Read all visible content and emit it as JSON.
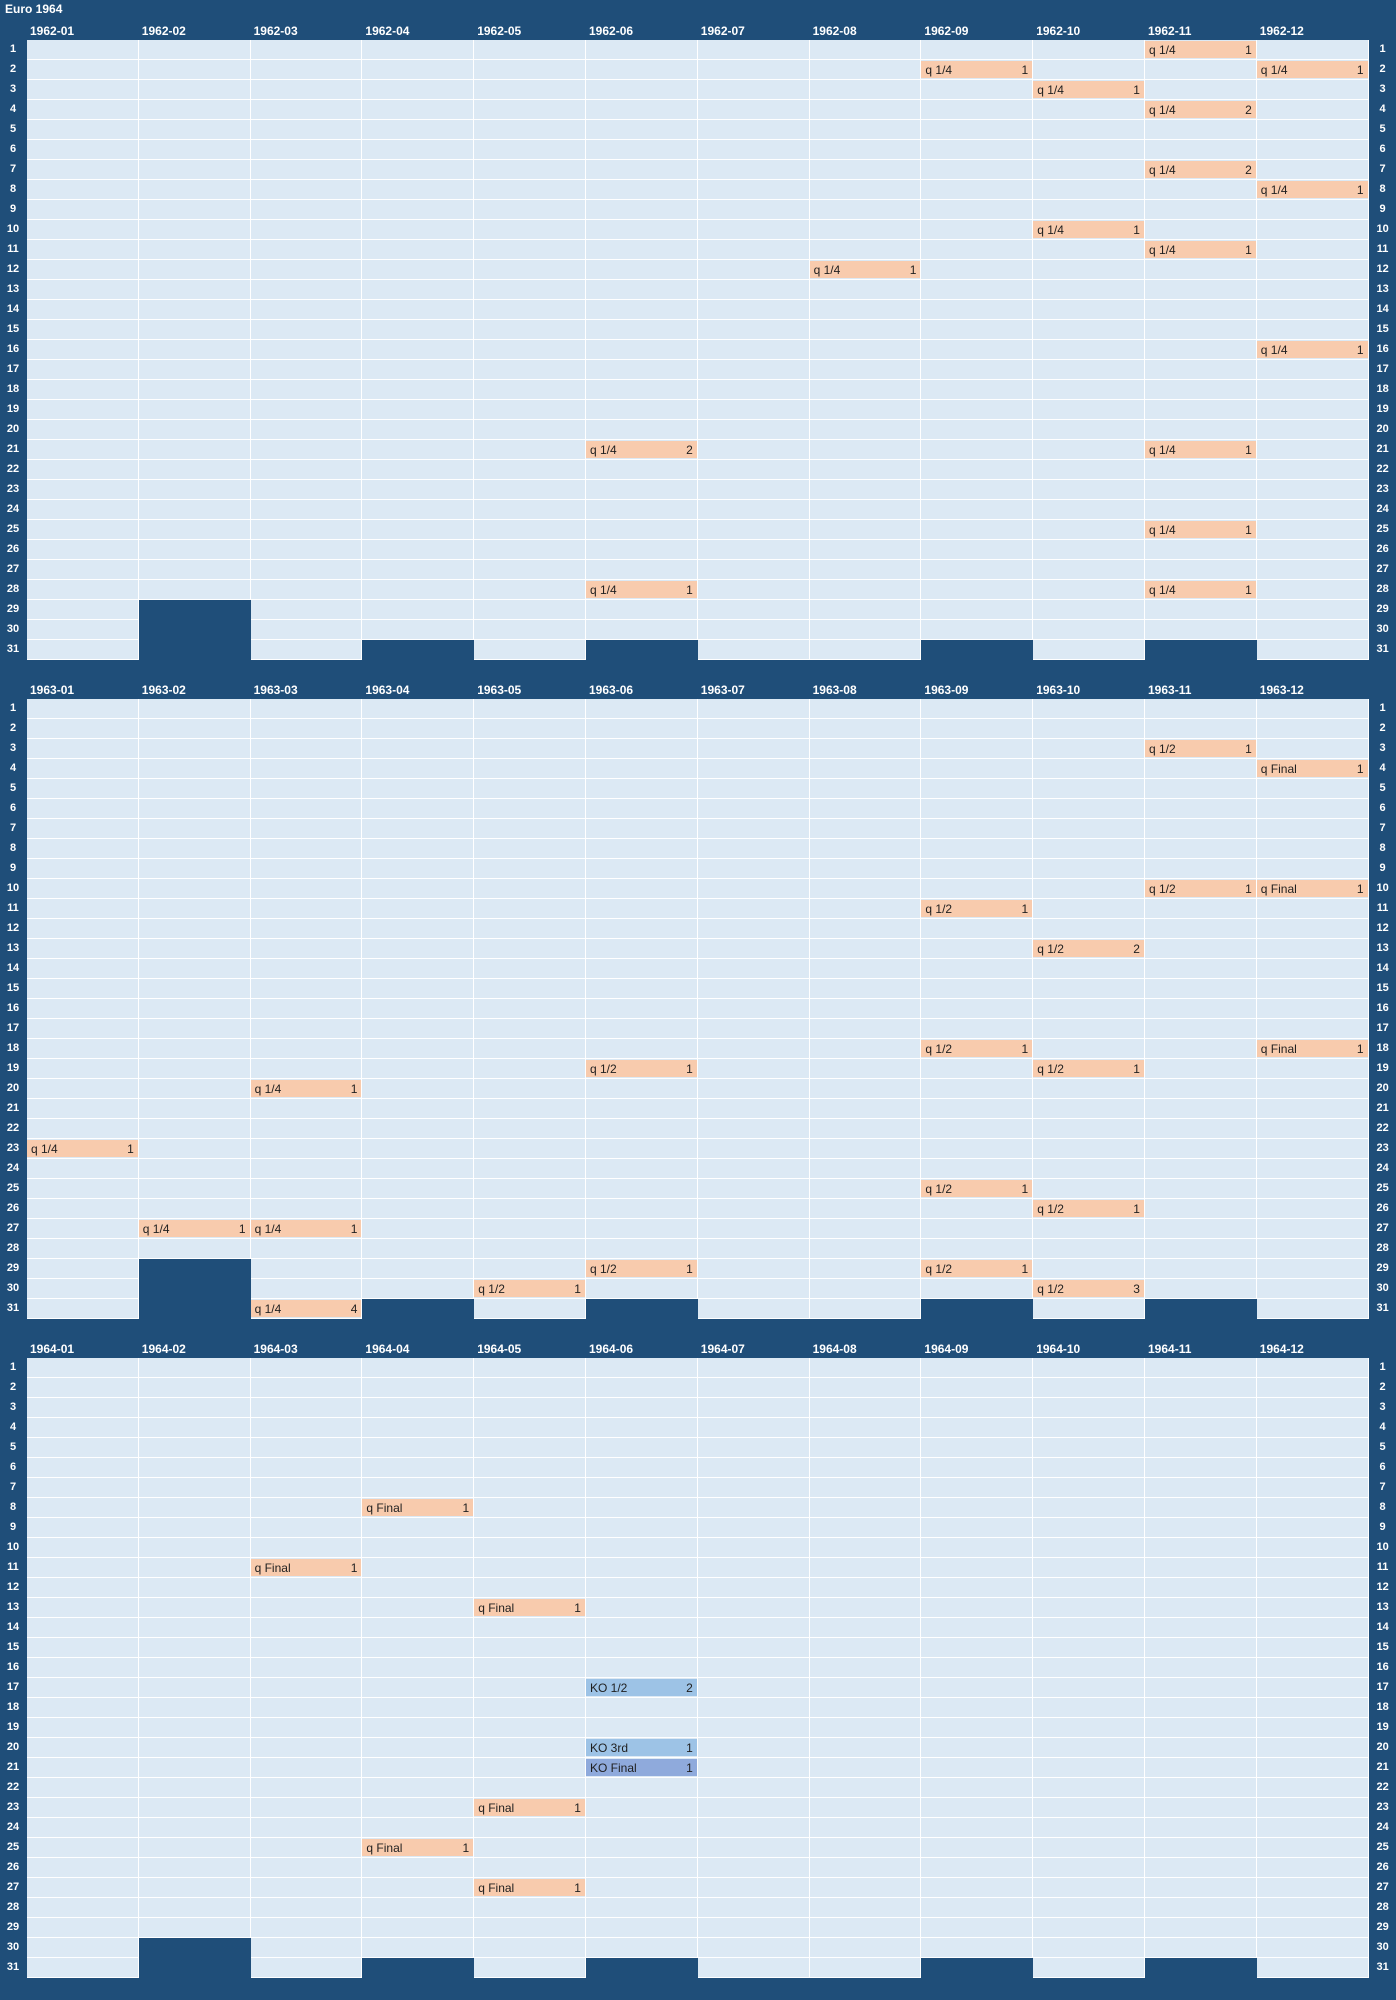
{
  "title": "Euro 1964",
  "colors": {
    "background": "#1f4e79",
    "cell": "#dce9f4",
    "gridline": "#ffffff",
    "qualifier": "#f8cbad",
    "knockout_semi_3rd": "#9dc3e6",
    "knockout_final": "#8faadc"
  },
  "chart_data": {
    "type": "heatmap",
    "title": "Euro 1964",
    "days": [
      "1",
      "2",
      "3",
      "4",
      "5",
      "6",
      "7",
      "8",
      "9",
      "10",
      "11",
      "12",
      "13",
      "14",
      "15",
      "16",
      "17",
      "18",
      "19",
      "20",
      "21",
      "22",
      "23",
      "24",
      "25",
      "26",
      "27",
      "28",
      "29",
      "30",
      "31"
    ],
    "years": [
      {
        "months": [
          "1962-01",
          "1962-02",
          "1962-03",
          "1962-04",
          "1962-05",
          "1962-06",
          "1962-07",
          "1962-08",
          "1962-09",
          "1962-10",
          "1962-11",
          "1962-12"
        ],
        "events": [
          {
            "month": 11,
            "day": 1,
            "label": "q 1/4",
            "count": 1,
            "kind": "q"
          },
          {
            "month": 9,
            "day": 2,
            "label": "q 1/4",
            "count": 1,
            "kind": "q"
          },
          {
            "month": 12,
            "day": 2,
            "label": "q 1/4",
            "count": 1,
            "kind": "q"
          },
          {
            "month": 10,
            "day": 3,
            "label": "q 1/4",
            "count": 1,
            "kind": "q"
          },
          {
            "month": 11,
            "day": 4,
            "label": "q 1/4",
            "count": 2,
            "kind": "q"
          },
          {
            "month": 11,
            "day": 7,
            "label": "q 1/4",
            "count": 2,
            "kind": "q"
          },
          {
            "month": 12,
            "day": 8,
            "label": "q 1/4",
            "count": 1,
            "kind": "q"
          },
          {
            "month": 10,
            "day": 10,
            "label": "q 1/4",
            "count": 1,
            "kind": "q"
          },
          {
            "month": 11,
            "day": 11,
            "label": "q 1/4",
            "count": 1,
            "kind": "q"
          },
          {
            "month": 8,
            "day": 12,
            "label": "q 1/4",
            "count": 1,
            "kind": "q"
          },
          {
            "month": 12,
            "day": 16,
            "label": "q 1/4",
            "count": 1,
            "kind": "q"
          },
          {
            "month": 6,
            "day": 21,
            "label": "q 1/4",
            "count": 2,
            "kind": "q"
          },
          {
            "month": 11,
            "day": 21,
            "label": "q 1/4",
            "count": 1,
            "kind": "q"
          },
          {
            "month": 11,
            "day": 25,
            "label": "q 1/4",
            "count": 1,
            "kind": "q"
          },
          {
            "month": 6,
            "day": 28,
            "label": "q 1/4",
            "count": 1,
            "kind": "q"
          },
          {
            "month": 11,
            "day": 28,
            "label": "q 1/4",
            "count": 1,
            "kind": "q"
          }
        ]
      },
      {
        "months": [
          "1963-01",
          "1963-02",
          "1963-03",
          "1963-04",
          "1963-05",
          "1963-06",
          "1963-07",
          "1963-08",
          "1963-09",
          "1963-10",
          "1963-11",
          "1963-12"
        ],
        "events": [
          {
            "month": 11,
            "day": 3,
            "label": "q 1/2",
            "count": 1,
            "kind": "q"
          },
          {
            "month": 12,
            "day": 4,
            "label": "q Final",
            "count": 1,
            "kind": "q"
          },
          {
            "month": 11,
            "day": 10,
            "label": "q 1/2",
            "count": 1,
            "kind": "q"
          },
          {
            "month": 12,
            "day": 10,
            "label": "q Final",
            "count": 1,
            "kind": "q"
          },
          {
            "month": 9,
            "day": 11,
            "label": "q 1/2",
            "count": 1,
            "kind": "q"
          },
          {
            "month": 10,
            "day": 13,
            "label": "q 1/2",
            "count": 2,
            "kind": "q"
          },
          {
            "month": 9,
            "day": 18,
            "label": "q 1/2",
            "count": 1,
            "kind": "q"
          },
          {
            "month": 12,
            "day": 18,
            "label": "q Final",
            "count": 1,
            "kind": "q"
          },
          {
            "month": 6,
            "day": 19,
            "label": "q 1/2",
            "count": 1,
            "kind": "q"
          },
          {
            "month": 10,
            "day": 19,
            "label": "q 1/2",
            "count": 1,
            "kind": "q"
          },
          {
            "month": 3,
            "day": 20,
            "label": "q 1/4",
            "count": 1,
            "kind": "q"
          },
          {
            "month": 1,
            "day": 23,
            "label": "q 1/4",
            "count": 1,
            "kind": "q"
          },
          {
            "month": 9,
            "day": 25,
            "label": "q 1/2",
            "count": 1,
            "kind": "q"
          },
          {
            "month": 10,
            "day": 26,
            "label": "q 1/2",
            "count": 1,
            "kind": "q"
          },
          {
            "month": 2,
            "day": 27,
            "label": "q 1/4",
            "count": 1,
            "kind": "q"
          },
          {
            "month": 3,
            "day": 27,
            "label": "q 1/4",
            "count": 1,
            "kind": "q"
          },
          {
            "month": 6,
            "day": 29,
            "label": "q 1/2",
            "count": 1,
            "kind": "q"
          },
          {
            "month": 9,
            "day": 29,
            "label": "q 1/2",
            "count": 1,
            "kind": "q"
          },
          {
            "month": 5,
            "day": 30,
            "label": "q 1/2",
            "count": 1,
            "kind": "q"
          },
          {
            "month": 10,
            "day": 30,
            "label": "q 1/2",
            "count": 3,
            "kind": "q"
          },
          {
            "month": 3,
            "day": 31,
            "label": "q 1/4",
            "count": 4,
            "kind": "q"
          }
        ]
      },
      {
        "months": [
          "1964-01",
          "1964-02",
          "1964-03",
          "1964-04",
          "1964-05",
          "1964-06",
          "1964-07",
          "1964-08",
          "1964-09",
          "1964-10",
          "1964-11",
          "1964-12"
        ],
        "events": [
          {
            "month": 4,
            "day": 8,
            "label": "q Final",
            "count": 1,
            "kind": "q"
          },
          {
            "month": 3,
            "day": 11,
            "label": "q Final",
            "count": 1,
            "kind": "q"
          },
          {
            "month": 5,
            "day": 13,
            "label": "q Final",
            "count": 1,
            "kind": "q"
          },
          {
            "month": 6,
            "day": 17,
            "label": "KO 1/2",
            "count": 2,
            "kind": "ko1"
          },
          {
            "month": 6,
            "day": 20,
            "label": "KO 3rd",
            "count": 1,
            "kind": "ko1"
          },
          {
            "month": 6,
            "day": 21,
            "label": "KO Final",
            "count": 1,
            "kind": "ko2"
          },
          {
            "month": 5,
            "day": 23,
            "label": "q Final",
            "count": 1,
            "kind": "q"
          },
          {
            "month": 4,
            "day": 25,
            "label": "q Final",
            "count": 1,
            "kind": "q"
          },
          {
            "month": 5,
            "day": 27,
            "label": "q Final",
            "count": 1,
            "kind": "q"
          }
        ]
      }
    ]
  }
}
